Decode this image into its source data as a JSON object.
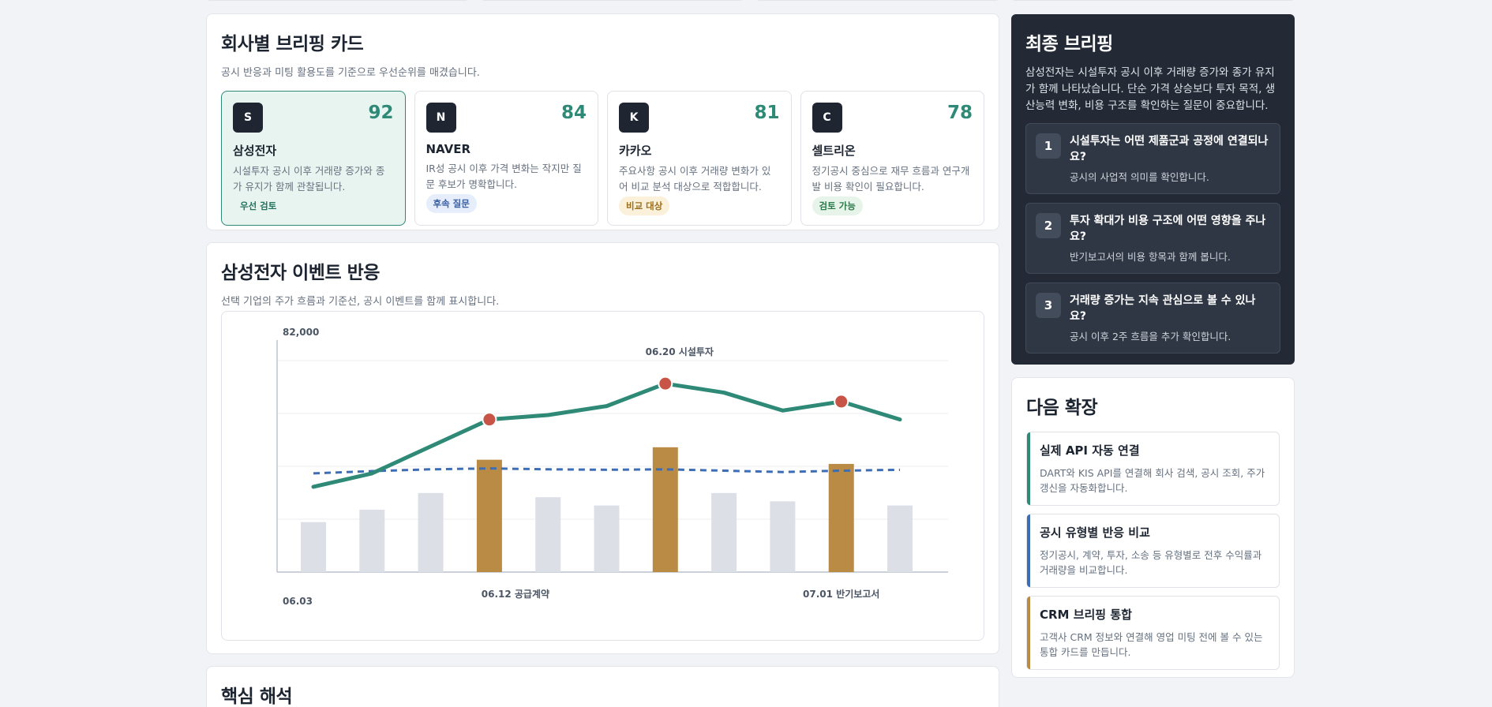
{
  "briefing": {
    "title": "회사별 브리핑 카드",
    "subtitle": "공시 반응과 미팅 활용도를 기준으로 우선순위를 매겼습니다.",
    "cards": [
      {
        "logo": "S",
        "score": "92",
        "name": "삼성전자",
        "desc": "시설투자 공시 이후 거래량 증가와 종가 유지가 함께 관찰됩니다.",
        "badge": "우선 검토"
      },
      {
        "logo": "N",
        "score": "84",
        "name": "NAVER",
        "desc": "IR성 공시 이후 가격 변화는 작지만 질문 후보가 명확합니다.",
        "badge": "후속 질문"
      },
      {
        "logo": "K",
        "score": "81",
        "name": "카카오",
        "desc": "주요사항 공시 이후 거래량 변화가 있어 비교 분석 대상으로 적합합니다.",
        "badge": "비교 대상"
      },
      {
        "logo": "C",
        "score": "78",
        "name": "셀트리온",
        "desc": "정기공시 중심으로 재무 흐름과 연구개발 비용 확인이 필요합니다.",
        "badge": "검토 가능"
      }
    ]
  },
  "event_chart": {
    "title": "삼성전자 이벤트 반응",
    "subtitle": "선택 기업의 주가 흐름과 기준선, 공시 이벤트를 함께 표시합니다."
  },
  "chart_data": {
    "type": "line",
    "ytop_label": "82,000",
    "x_labels": [
      {
        "index": 0,
        "text": "06.03"
      },
      {
        "index": 3,
        "text": "06.12 공급계약"
      },
      {
        "index": 9,
        "text": "07.01 반기보고서"
      }
    ],
    "event_label": {
      "index": 6,
      "text": "06.20 시설투자"
    },
    "x": [
      0,
      1,
      2,
      3,
      4,
      5,
      6,
      7,
      8,
      9,
      10
    ],
    "price_line": [
      76600,
      76900,
      77500,
      78100,
      78200,
      78400,
      78900,
      78700,
      78300,
      78500,
      78100
    ],
    "baseline": [
      76900,
      76950,
      76990,
      77010,
      76990,
      76980,
      76990,
      76960,
      76930,
      76960,
      76980
    ],
    "volume_bars": [
      12,
      15,
      19,
      27,
      18,
      16,
      30,
      19,
      17,
      26,
      16
    ],
    "event_indices": [
      3,
      6,
      9
    ],
    "ylim": [
      74700,
      79800
    ],
    "volume_max": 55,
    "colors": {
      "line": "#2e8a77",
      "baseline": "#3d6db5",
      "event_bar": "#b98b45",
      "bar": "#dcdfe6",
      "event_dot": "#c85447"
    }
  },
  "analysis": {
    "title": "핵심 해석"
  },
  "final_briefing": {
    "title": "최종 브리핑",
    "summary": "삼성전자는 시설투자 공시 이후 거래량 증가와 종가 유지가 함께 나타났습니다. 단순 가격 상승보다 투자 목적, 생산능력 변화, 비용 구조를 확인하는 질문이 중요합니다.",
    "questions": [
      {
        "num": "1",
        "title": "시설투자는 어떤 제품군과 공정에 연결되나요?",
        "sub": "공시의 사업적 의미를 확인합니다."
      },
      {
        "num": "2",
        "title": "투자 확대가 비용 구조에 어떤 영향을 주나요?",
        "sub": "반기보고서의 비용 항목과 함께 봅니다."
      },
      {
        "num": "3",
        "title": "거래량 증가는 지속 관심으로 볼 수 있나요?",
        "sub": "공시 이후 2주 흐름을 추가 확인합니다."
      }
    ]
  },
  "next_expansion": {
    "title": "다음 확장",
    "items": [
      {
        "title": "실제 API 자동 연결",
        "desc": "DART와 KIS API를 연결해 회사 검색, 공시 조회, 주가 갱신을 자동화합니다.",
        "color": "#2e8a77"
      },
      {
        "title": "공시 유형별 반응 비교",
        "desc": "정기공시, 계약, 투자, 소송 등 유형별로 전후 수익률과 거래량을 비교합니다.",
        "color": "#3d6db5"
      },
      {
        "title": "CRM 브리핑 통합",
        "desc": "고객사 CRM 정보와 연결해 영업 미팅 전에 볼 수 있는 통합 카드를 만듭니다.",
        "color": "#b98b45"
      }
    ]
  }
}
